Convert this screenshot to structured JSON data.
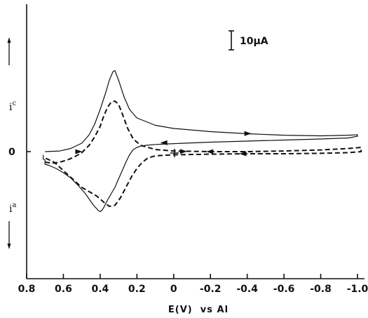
{
  "chart_data": {
    "type": "line",
    "title": "",
    "xlabel": "E(V)  vs Al",
    "ylabel": "",
    "x_reversed": true,
    "xlim": [
      0.8,
      -1.0
    ],
    "x_ticks": [
      0.8,
      0.6,
      0.4,
      0.2,
      0,
      -0.2,
      -0.4,
      -0.6,
      -0.8,
      -1.0
    ],
    "x_tick_labels": [
      "0.8",
      "0.6",
      "0.4",
      "0.2",
      "0",
      "-0.2",
      "-0.4",
      "-0.6",
      "-0.8",
      "-1.0"
    ],
    "ylim_uA": [
      -38,
      46
    ],
    "y_zero_label": "0",
    "cathodic_label": "i",
    "cathodic_sup": "c",
    "anodic_label": "i",
    "anodic_sup": "a",
    "scale_bar_label": "10μA",
    "scale_bar_value_uA": 10,
    "grid": false,
    "series": [
      {
        "style": "solid",
        "x": [
          0.7,
          0.62,
          0.56,
          0.5,
          0.46,
          0.43,
          0.4,
          0.37,
          0.35,
          0.33,
          0.32,
          0.3,
          0.27,
          0.24,
          0.2,
          0.1,
          0.0,
          -0.2,
          -0.4,
          -0.6,
          -0.8,
          -0.95,
          -1.0,
          -1.0,
          -0.95,
          -0.8,
          -0.6,
          -0.4,
          -0.2,
          0.0,
          0.1,
          0.15,
          0.18,
          0.2,
          0.22,
          0.24,
          0.26,
          0.28,
          0.3,
          0.32,
          0.34,
          0.36,
          0.38,
          0.39,
          0.4,
          0.41,
          0.44,
          0.48,
          0.52,
          0.56,
          0.6,
          0.64,
          0.68,
          0.7,
          0.7,
          0.71,
          0.71
        ],
        "y": [
          0.0,
          0.3,
          1.5,
          4.0,
          8.0,
          13.0,
          20.0,
          28.0,
          34.0,
          38.0,
          38.5,
          34.0,
          26.0,
          20.0,
          16.0,
          12.5,
          11.0,
          9.5,
          8.5,
          7.8,
          7.5,
          7.8,
          8.0,
          7.3,
          6.5,
          6.0,
          5.5,
          5.0,
          4.5,
          3.8,
          3.4,
          3.0,
          2.6,
          2.0,
          1.0,
          -1.5,
          -5.0,
          -9.0,
          -13.0,
          -17.0,
          -20.0,
          -23.0,
          -26.5,
          -27.8,
          -28.5,
          -28.0,
          -25.0,
          -20.0,
          -16.0,
          -12.5,
          -10.0,
          -8.0,
          -6.5,
          -6.0,
          -4.0,
          -3.5,
          -1.5
        ]
      },
      {
        "style": "dashed",
        "x": [
          0.7,
          0.66,
          0.62,
          0.58,
          0.54,
          0.5,
          0.46,
          0.43,
          0.4,
          0.38,
          0.36,
          0.34,
          0.32,
          0.3,
          0.28,
          0.25,
          0.22,
          0.18,
          0.1,
          0.0,
          -0.2,
          -0.4,
          -0.6,
          -0.8,
          -0.95,
          -1.02,
          -1.02,
          -0.95,
          -0.8,
          -0.6,
          -0.4,
          -0.2,
          0.0,
          0.1,
          0.14,
          0.17,
          0.2,
          0.23,
          0.26,
          0.29,
          0.32,
          0.35,
          0.38,
          0.4,
          0.42,
          0.46,
          0.5,
          0.55,
          0.6,
          0.65,
          0.7
        ],
        "y": [
          -5.0,
          -5.5,
          -5.0,
          -4.0,
          -2.5,
          -0.5,
          3.0,
          7.0,
          12.0,
          17.0,
          21.0,
          23.5,
          24.0,
          22.5,
          18.0,
          11.0,
          6.0,
          3.0,
          1.0,
          0.3,
          0.0,
          0.0,
          0.3,
          0.8,
          1.5,
          2.0,
          0.0,
          -0.5,
          -0.8,
          -1.0,
          -1.0,
          -1.2,
          -1.5,
          -2.0,
          -3.0,
          -5.0,
          -8.0,
          -12.0,
          -17.0,
          -22.0,
          -25.5,
          -26.0,
          -24.0,
          -22.5,
          -21.0,
          -19.0,
          -17.0,
          -13.0,
          -9.0,
          -5.0,
          -3.0
        ]
      }
    ],
    "arrows": [
      {
        "series": "solid",
        "x": 0.52,
        "y": 0.0,
        "direction": "right"
      },
      {
        "series": "solid",
        "x": -0.4,
        "y": 8.6,
        "direction": "right"
      },
      {
        "series": "solid",
        "x": 0.05,
        "y": 4.2,
        "direction": "left"
      },
      {
        "series": "dashed",
        "x": -0.05,
        "y": 0.1,
        "direction": "right"
      },
      {
        "series": "dashed",
        "x": -0.2,
        "y": 0.0,
        "direction": "left"
      },
      {
        "series": "dashed",
        "x": -0.38,
        "y": -1.0,
        "direction": "left"
      }
    ]
  }
}
